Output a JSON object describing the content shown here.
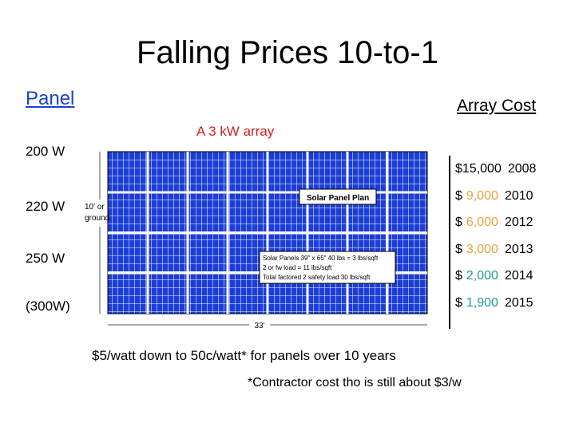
{
  "title": "Falling Prices 10-to-1",
  "panel_heading": "Panel",
  "cost_heading": "Array Cost",
  "array_label": "A 3 kW array",
  "panel_sizes": [
    "200 W",
    "220 W",
    "250 W",
    "(300W)"
  ],
  "costs": [
    {
      "symbol": "$",
      "amount": "15,000",
      "year": "2008",
      "color": "#000000"
    },
    {
      "symbol": "$",
      "amount": "9,000",
      "year": "2010",
      "color": "#e8a33d"
    },
    {
      "symbol": "$",
      "amount": "6,000",
      "year": "2012",
      "color": "#e8a33d"
    },
    {
      "symbol": "$",
      "amount": "3,000",
      "year": "2013",
      "color": "#e8a33d"
    },
    {
      "symbol": "$",
      "amount": "2,000",
      "year": "2014",
      "color": "#1f9a9a"
    },
    {
      "symbol": "$",
      "amount": "1,900",
      "year": "2015",
      "color": "#1f9a9a"
    }
  ],
  "plan": {
    "title": "Solar Panel Plan",
    "height_label": [
      "10' or",
      "ground"
    ],
    "notes": [
      "Solar Panels 39\" x 65\" 40 lbs = 3 lbs/sqft",
      "2 or fw load = 11 lbs/sqft",
      "Total factored 2 safety load 30 lbs/sqft"
    ],
    "width_label": "33'"
  },
  "summary": "$5/watt down to 50c/watt* for panels over 10 years",
  "footnote": "*Contractor cost tho is still about $3/w"
}
